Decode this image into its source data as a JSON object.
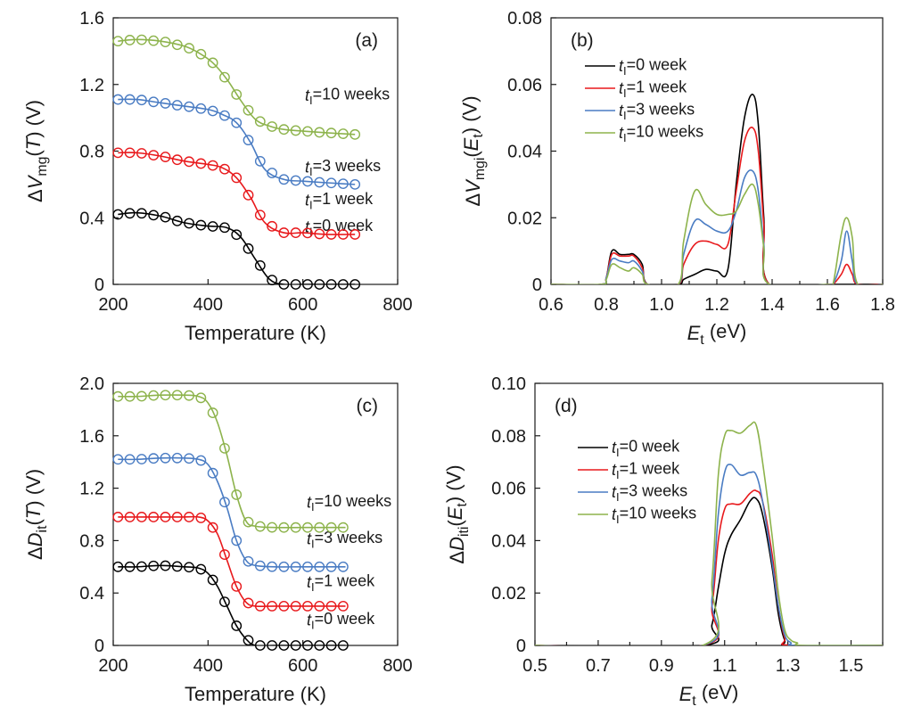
{
  "figure": {
    "panels": [
      "(a)",
      "(b)",
      "(c)",
      "(d)"
    ]
  },
  "chart_data": [
    {
      "id": "a",
      "type": "line",
      "panel_label": "(a)",
      "xlabel": "Temperature (K)",
      "ylabel": {
        "pre": "ΔV",
        "sub": "mg",
        "mid": "(",
        "ital": "T",
        "post": ") (V)"
      },
      "xlim": [
        200,
        800
      ],
      "ylim": [
        0,
        1.6
      ],
      "xticks": [
        "200",
        "400",
        "600",
        "800"
      ],
      "xtick_values": [
        200,
        400,
        600,
        800
      ],
      "yticks": [
        "0",
        "0.4",
        "0.8",
        "1.2",
        "1.6"
      ],
      "ytick_values": [
        0,
        0.4,
        0.8,
        1.2,
        1.6
      ],
      "markers": "open-circle",
      "marker_x": [
        210,
        235,
        260,
        285,
        310,
        335,
        360,
        385,
        410,
        435,
        460,
        485,
        510,
        535,
        560,
        585,
        610,
        635,
        660,
        685,
        710
      ],
      "series": [
        {
          "name": "0 week",
          "color": "#000000",
          "annotation": {
            "pre": "t",
            "sub": "I",
            "post": "=0 week"
          },
          "annot_at": [
            0.29,
            0.35
          ],
          "x": [
            210,
            250,
            300,
            350,
            400,
            440,
            470,
            500,
            530,
            560,
            600,
            650,
            710
          ],
          "y": [
            0.42,
            0.43,
            0.41,
            0.37,
            0.35,
            0.34,
            0.28,
            0.15,
            0.03,
            0.0,
            0.0,
            0.0,
            0.0
          ]
        },
        {
          "name": "1 week",
          "color": "#e8191c",
          "annotation": {
            "pre": "t",
            "sub": "I",
            "post": "=1 week"
          },
          "annot_at": [
            0.29,
            0.51
          ],
          "x": [
            210,
            250,
            300,
            350,
            400,
            430,
            460,
            490,
            520,
            560,
            600,
            650,
            710
          ],
          "y": [
            0.79,
            0.79,
            0.77,
            0.74,
            0.72,
            0.7,
            0.64,
            0.52,
            0.37,
            0.31,
            0.31,
            0.3,
            0.3
          ]
        },
        {
          "name": "3 weeks",
          "color": "#4a7cc3",
          "annotation": {
            "pre": "t",
            "sub": "I",
            "post": "=3 weeks"
          },
          "annot_at": [
            0.29,
            0.71
          ],
          "x": [
            210,
            250,
            300,
            350,
            400,
            430,
            460,
            490,
            520,
            560,
            600,
            650,
            710
          ],
          "y": [
            1.11,
            1.11,
            1.09,
            1.07,
            1.05,
            1.02,
            0.97,
            0.85,
            0.69,
            0.63,
            0.62,
            0.61,
            0.6
          ]
        },
        {
          "name": "10 weeks",
          "color": "#8db34c",
          "annotation": {
            "pre": "t",
            "sub": "I",
            "post": "=10 weeks"
          },
          "annot_at": [
            0.29,
            1.14
          ],
          "x": [
            210,
            250,
            300,
            350,
            380,
            410,
            440,
            470,
            500,
            530,
            560,
            600,
            650,
            710
          ],
          "y": [
            1.46,
            1.47,
            1.46,
            1.43,
            1.39,
            1.33,
            1.23,
            1.1,
            0.99,
            0.95,
            0.93,
            0.92,
            0.91,
            0.9
          ]
        }
      ]
    },
    {
      "id": "b",
      "type": "line",
      "panel_label": "(b)",
      "xlabel": {
        "pre": "E",
        "sub": "t",
        "post": " (eV)"
      },
      "ylabel": {
        "pre": "ΔV",
        "sub": "mgi",
        "mid": "(",
        "ital": "E",
        "itsub": "t",
        "post": ") (V)"
      },
      "xlim": [
        0.6,
        1.8
      ],
      "ylim": [
        0,
        0.08
      ],
      "xticks": [
        "0.6",
        "0.8",
        "1.0",
        "1.2",
        "1.4",
        "1.6",
        "1.8"
      ],
      "xtick_values": [
        0.6,
        0.8,
        1.0,
        1.2,
        1.4,
        1.6,
        1.8
      ],
      "yticks": [
        "0",
        "0.02",
        "0.04",
        "0.06",
        "0.08"
      ],
      "ytick_values": [
        0,
        0.02,
        0.04,
        0.06,
        0.08
      ],
      "legend": "top-left",
      "series": [
        {
          "name": "0 week",
          "color": "#000000",
          "legend": {
            "pre": "t",
            "sub": "I",
            "post": "=0 week"
          },
          "x": [
            0.6,
            0.78,
            0.8,
            0.82,
            0.85,
            0.88,
            0.9,
            0.93,
            0.95,
            1.06,
            1.08,
            1.12,
            1.16,
            1.2,
            1.24,
            1.27,
            1.3,
            1.33,
            1.35,
            1.37,
            1.39,
            1.6,
            1.62,
            1.65,
            1.67,
            1.69,
            1.71,
            1.8
          ],
          "y": [
            0,
            0,
            0.002,
            0.01,
            0.009,
            0.009,
            0.009,
            0.006,
            0,
            0,
            0.0015,
            0.003,
            0.0045,
            0.004,
            0.0045,
            0.03,
            0.05,
            0.057,
            0.048,
            0.02,
            0,
            0,
            0,
            0,
            0,
            0,
            0,
            0
          ]
        },
        {
          "name": "1 week",
          "color": "#e8191c",
          "legend": {
            "pre": "t",
            "sub": "I",
            "post": "=1 week"
          },
          "x": [
            0.6,
            0.78,
            0.8,
            0.82,
            0.85,
            0.88,
            0.9,
            0.93,
            0.95,
            1.06,
            1.08,
            1.12,
            1.16,
            1.2,
            1.24,
            1.27,
            1.3,
            1.33,
            1.35,
            1.37,
            1.39,
            1.6,
            1.62,
            1.65,
            1.67,
            1.69,
            1.71,
            1.8
          ],
          "y": [
            0,
            0,
            0.002,
            0.009,
            0.0085,
            0.0085,
            0.0085,
            0.005,
            0,
            0,
            0.006,
            0.012,
            0.013,
            0.012,
            0.012,
            0.028,
            0.043,
            0.047,
            0.04,
            0.018,
            0,
            0,
            0,
            0.003,
            0.006,
            0.003,
            0,
            0
          ]
        },
        {
          "name": "3 weeks",
          "color": "#4a7cc3",
          "legend": {
            "pre": "t",
            "sub": "I",
            "post": "=3 weeks"
          },
          "x": [
            0.6,
            0.78,
            0.8,
            0.82,
            0.85,
            0.88,
            0.9,
            0.93,
            0.95,
            1.06,
            1.08,
            1.12,
            1.16,
            1.2,
            1.24,
            1.27,
            1.3,
            1.33,
            1.35,
            1.37,
            1.39,
            1.6,
            1.62,
            1.65,
            1.67,
            1.69,
            1.71,
            1.8
          ],
          "y": [
            0,
            0,
            0.002,
            0.0075,
            0.007,
            0.0065,
            0.007,
            0.004,
            0,
            0,
            0.009,
            0.019,
            0.018,
            0.016,
            0.016,
            0.022,
            0.032,
            0.034,
            0.028,
            0.012,
            0,
            0,
            0,
            0.007,
            0.016,
            0.007,
            0,
            0
          ]
        },
        {
          "name": "10 weeks",
          "color": "#8db34c",
          "legend": {
            "pre": "t",
            "sub": "I",
            "post": "=10 weeks"
          },
          "x": [
            0.6,
            0.78,
            0.8,
            0.82,
            0.85,
            0.88,
            0.9,
            0.93,
            0.95,
            1.06,
            1.08,
            1.12,
            1.16,
            1.2,
            1.24,
            1.27,
            1.3,
            1.33,
            1.35,
            1.37,
            1.39,
            1.6,
            1.62,
            1.65,
            1.67,
            1.69,
            1.71,
            1.8
          ],
          "y": [
            0,
            0,
            0.0015,
            0.006,
            0.005,
            0.004,
            0.005,
            0.003,
            0,
            0,
            0.013,
            0.028,
            0.024,
            0.021,
            0.021,
            0.022,
            0.027,
            0.03,
            0.024,
            0.011,
            0,
            0,
            0,
            0.015,
            0.02,
            0.014,
            0,
            0
          ]
        }
      ]
    },
    {
      "id": "c",
      "type": "line",
      "panel_label": "(c)",
      "xlabel": "Temperature (K)",
      "ylabel": {
        "pre": "ΔD",
        "sub": "it",
        "mid": "(",
        "ital": "T",
        "post": ") (V)"
      },
      "xlim": [
        200,
        800
      ],
      "ylim": [
        0,
        2.0
      ],
      "xticks": [
        "200",
        "400",
        "600",
        "800"
      ],
      "xtick_values": [
        200,
        400,
        600,
        800
      ],
      "yticks": [
        "0",
        "0.4",
        "0.8",
        "1.2",
        "1.6",
        "2.0"
      ],
      "ytick_values": [
        0,
        0.4,
        0.8,
        1.2,
        1.6,
        2.0
      ],
      "markers": "open-circle",
      "marker_x": [
        210,
        235,
        260,
        285,
        310,
        335,
        360,
        385,
        410,
        435,
        460,
        485,
        510,
        535,
        560,
        585,
        610,
        635,
        660,
        685
      ],
      "series": [
        {
          "name": "0 week",
          "color": "#000000",
          "annotation": {
            "pre": "t",
            "sub": "I",
            "post": "=0 week"
          },
          "annot_at": [
            0.29,
            0.2
          ],
          "x": [
            210,
            250,
            300,
            350,
            380,
            400,
            420,
            440,
            460,
            480,
            500,
            540,
            600,
            690
          ],
          "y": [
            0.6,
            0.6,
            0.61,
            0.6,
            0.59,
            0.55,
            0.45,
            0.3,
            0.15,
            0.05,
            0.0,
            0.0,
            0.0,
            0.0
          ]
        },
        {
          "name": "1 week",
          "color": "#e8191c",
          "annotation": {
            "pre": "t",
            "sub": "I",
            "post": "=1 week"
          },
          "annot_at": [
            0.29,
            0.49
          ],
          "x": [
            210,
            250,
            300,
            350,
            380,
            400,
            420,
            440,
            460,
            480,
            500,
            540,
            600,
            690
          ],
          "y": [
            0.98,
            0.98,
            0.98,
            0.98,
            0.98,
            0.95,
            0.85,
            0.65,
            0.45,
            0.33,
            0.3,
            0.3,
            0.3,
            0.3
          ]
        },
        {
          "name": "3 weeks",
          "color": "#4a7cc3",
          "annotation": {
            "pre": "t",
            "sub": "I",
            "post": "=3 weeks"
          },
          "annot_at": [
            0.29,
            0.82
          ],
          "x": [
            210,
            250,
            300,
            350,
            380,
            400,
            420,
            440,
            460,
            480,
            500,
            540,
            600,
            690
          ],
          "y": [
            1.42,
            1.42,
            1.43,
            1.43,
            1.42,
            1.38,
            1.25,
            1.05,
            0.8,
            0.65,
            0.61,
            0.6,
            0.6,
            0.6
          ]
        },
        {
          "name": "10 weeks",
          "color": "#8db34c",
          "annotation": {
            "pre": "t",
            "sub": "I",
            "post": "=10 weeks"
          },
          "annot_at": [
            0.29,
            1.1
          ],
          "x": [
            210,
            250,
            300,
            350,
            380,
            400,
            420,
            440,
            460,
            480,
            500,
            540,
            600,
            690
          ],
          "y": [
            1.9,
            1.9,
            1.91,
            1.91,
            1.9,
            1.85,
            1.7,
            1.45,
            1.15,
            0.95,
            0.91,
            0.9,
            0.9,
            0.9
          ]
        }
      ]
    },
    {
      "id": "d",
      "type": "line",
      "panel_label": "(d)",
      "xlabel": {
        "pre": "E",
        "sub": "t",
        "post": " (eV)"
      },
      "ylabel": {
        "pre": "ΔD",
        "sub": "iti",
        "mid": "(",
        "ital": "E",
        "itsub": "t",
        "post": ") (V)"
      },
      "xlim": [
        0.5,
        1.6
      ],
      "ylim": [
        0,
        0.1
      ],
      "xticks": [
        "0.5",
        "0.7",
        "0.9",
        "1.1",
        "1.3",
        "1.5"
      ],
      "xtick_values": [
        0.5,
        0.7,
        0.9,
        1.1,
        1.3,
        1.5
      ],
      "yticks": [
        "0",
        "0.02",
        "0.04",
        "0.06",
        "0.08",
        "0.10"
      ],
      "ytick_values": [
        0,
        0.02,
        0.04,
        0.06,
        0.08,
        0.1
      ],
      "legend": "top-left",
      "series": [
        {
          "name": "0 week",
          "color": "#000000",
          "legend": {
            "pre": "t",
            "sub": "I",
            "post": "=0 week"
          },
          "x": [
            0.5,
            1.03,
            1.06,
            1.08,
            1.1,
            1.12,
            1.15,
            1.18,
            1.2,
            1.22,
            1.25,
            1.27,
            1.29,
            1.31,
            1.6
          ],
          "y": [
            0,
            0,
            0.008,
            0.022,
            0.035,
            0.042,
            0.048,
            0.055,
            0.056,
            0.05,
            0.03,
            0.012,
            0.002,
            0,
            0
          ]
        },
        {
          "name": "1 week",
          "color": "#e8191c",
          "legend": {
            "pre": "t",
            "sub": "I",
            "post": "=1 week"
          },
          "x": [
            0.5,
            1.03,
            1.06,
            1.08,
            1.1,
            1.12,
            1.15,
            1.18,
            1.2,
            1.22,
            1.25,
            1.27,
            1.29,
            1.31,
            1.6
          ],
          "y": [
            0,
            0,
            0.015,
            0.04,
            0.052,
            0.054,
            0.054,
            0.058,
            0.059,
            0.055,
            0.035,
            0.015,
            0.003,
            0,
            0
          ]
        },
        {
          "name": "3 weeks",
          "color": "#4a7cc3",
          "legend": {
            "pre": "t",
            "sub": "I",
            "post": "=3 weeks"
          },
          "x": [
            0.5,
            1.03,
            1.06,
            1.08,
            1.1,
            1.12,
            1.15,
            1.18,
            1.2,
            1.22,
            1.25,
            1.27,
            1.29,
            1.31,
            1.33,
            1.6
          ],
          "y": [
            0,
            0,
            0.018,
            0.05,
            0.066,
            0.069,
            0.065,
            0.066,
            0.065,
            0.055,
            0.032,
            0.015,
            0.004,
            0.001,
            0,
            0
          ]
        },
        {
          "name": "10 weeks",
          "color": "#8db34c",
          "legend": {
            "pre": "t",
            "sub": "I",
            "post": "=10 weeks"
          },
          "x": [
            0.5,
            1.03,
            1.06,
            1.08,
            1.1,
            1.12,
            1.15,
            1.18,
            1.2,
            1.22,
            1.25,
            1.27,
            1.29,
            1.31,
            1.33,
            1.35,
            1.6
          ],
          "y": [
            0,
            0,
            0.025,
            0.065,
            0.08,
            0.082,
            0.081,
            0.084,
            0.084,
            0.07,
            0.042,
            0.02,
            0.006,
            0.002,
            0.001,
            0,
            0
          ]
        }
      ]
    }
  ]
}
